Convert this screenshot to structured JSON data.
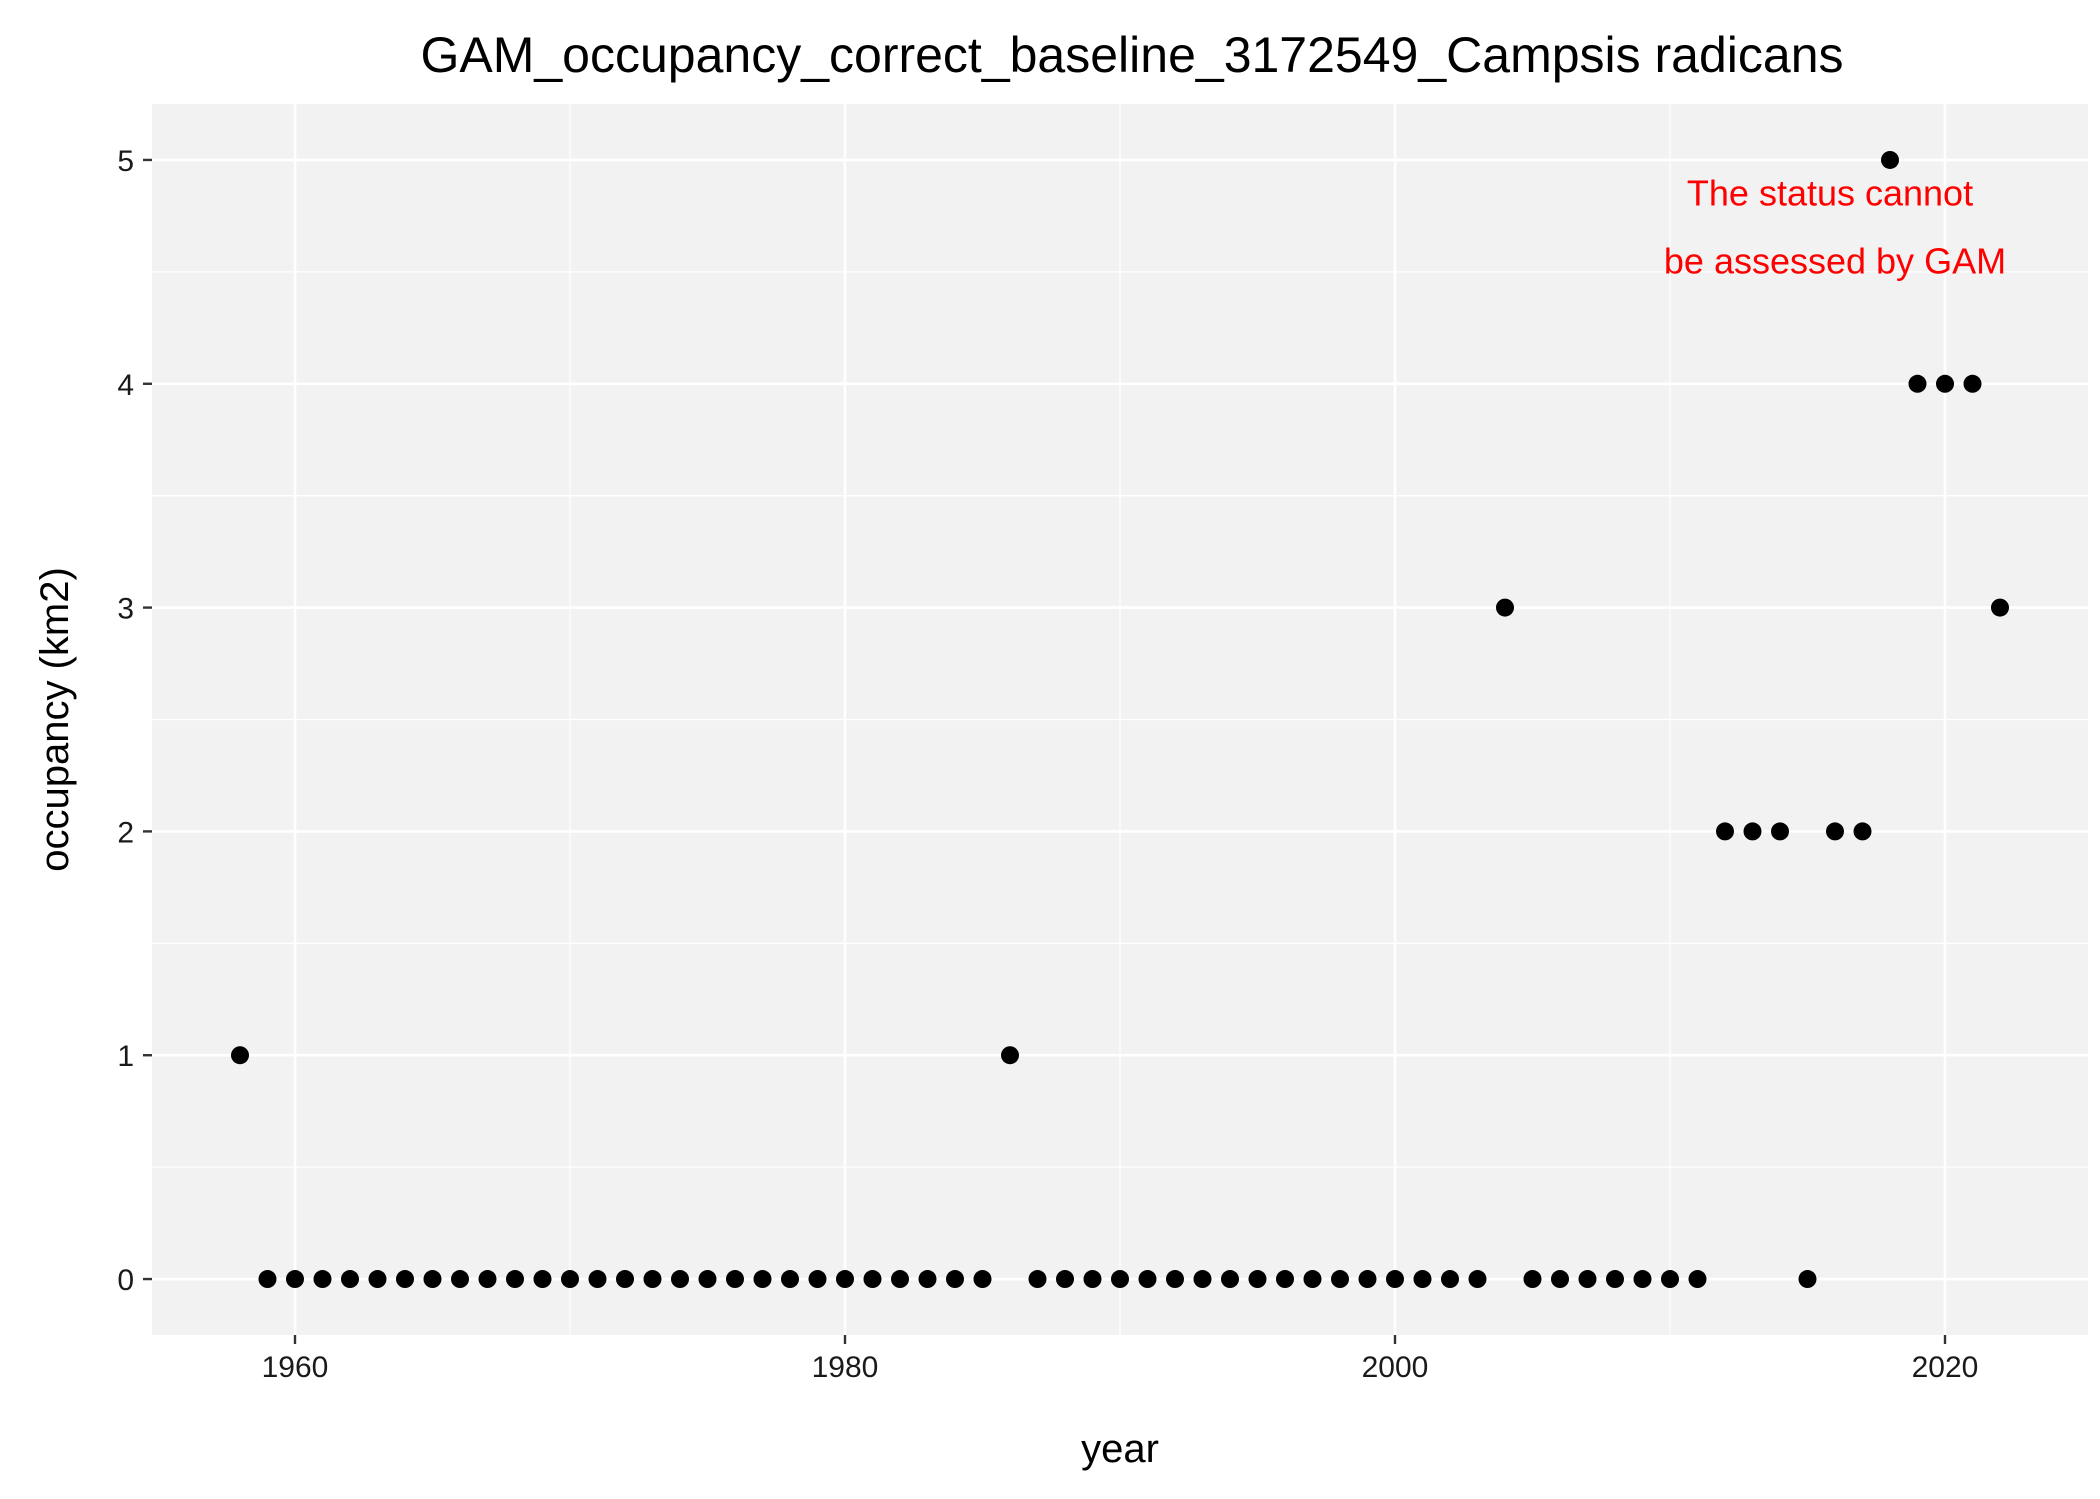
{
  "chart_data": {
    "type": "scatter",
    "title": "GAM_occupancy_correct_baseline_3172549_Campsis radicans",
    "xlabel": "year",
    "ylabel": "occupancy (km2)",
    "xlim": [
      1954.8,
      1925.2
    ],
    "ylim": [
      -0.25,
      5.25
    ],
    "x_major_ticks": [
      1960,
      1980,
      2000,
      2020
    ],
    "x_minor_ticks": [
      1970,
      1990,
      2010
    ],
    "y_major_ticks": [
      0,
      1,
      2,
      3,
      4,
      5
    ],
    "y_minor_ticks": [
      0.5,
      1.5,
      2.5,
      3.5,
      4.5
    ],
    "grid": true,
    "background": "#f2f2f2",
    "grid_color": "#ffffff",
    "point_color": "#000000",
    "annotation": {
      "lines": [
        "The status cannot",
        "be assessed by GAM"
      ],
      "color": "#ff0000",
      "x": 2016,
      "y": 4.85
    },
    "x": [
      1958,
      1959,
      1960,
      1961,
      1962,
      1963,
      1964,
      1965,
      1966,
      1967,
      1968,
      1969,
      1970,
      1971,
      1972,
      1973,
      1974,
      1975,
      1976,
      1977,
      1978,
      1979,
      1980,
      1981,
      1982,
      1983,
      1984,
      1985,
      1986,
      1987,
      1988,
      1989,
      1990,
      1991,
      1992,
      1993,
      1994,
      1995,
      1996,
      1997,
      1998,
      1999,
      2000,
      2001,
      2002,
      2003,
      2004,
      2005,
      2006,
      2007,
      2008,
      2009,
      2010,
      2011,
      2012,
      2013,
      2014,
      2015,
      2016,
      2017,
      2018,
      2019,
      2020,
      2021,
      2022
    ],
    "y": [
      1,
      0,
      0,
      0,
      0,
      0,
      0,
      0,
      0,
      0,
      0,
      0,
      0,
      0,
      0,
      0,
      0,
      0,
      0,
      0,
      0,
      0,
      0,
      0,
      0,
      0,
      0,
      0,
      1,
      0,
      0,
      0,
      0,
      0,
      0,
      0,
      0,
      0,
      0,
      0,
      0,
      0,
      0,
      0,
      0,
      0,
      3,
      0,
      0,
      0,
      0,
      0,
      0,
      0,
      2,
      2,
      2,
      0,
      2,
      2,
      5,
      4,
      4,
      4,
      3
    ]
  }
}
